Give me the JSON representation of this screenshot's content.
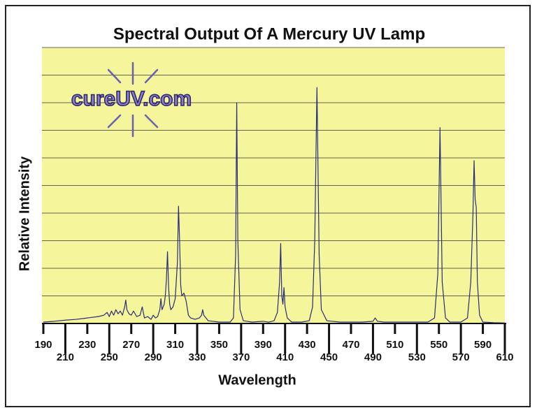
{
  "chart_data": {
    "type": "line",
    "title": "Spectral Output Of A Mercury UV Lamp",
    "x_label": "Wavelength",
    "y_label": "Relative Intensity",
    "logo_text": "cureUV.com",
    "x": [
      190,
      200,
      210,
      220,
      230,
      240,
      245,
      248,
      250,
      252,
      254,
      256,
      258,
      260,
      262,
      264,
      265,
      266,
      268,
      270,
      272,
      275,
      278,
      280,
      282,
      285,
      288,
      290,
      292,
      294,
      296,
      297,
      298,
      300,
      301,
      302,
      303,
      304,
      305,
      306,
      308,
      310,
      312,
      313,
      314,
      315,
      316,
      318,
      320,
      322,
      324,
      328,
      332,
      334,
      335,
      336,
      340,
      350,
      360,
      363,
      365,
      366,
      367,
      369,
      372,
      380,
      390,
      395,
      400,
      403,
      405,
      406,
      407,
      408,
      409,
      410,
      412,
      416,
      425,
      432,
      435,
      437,
      439,
      441,
      443,
      448,
      460,
      480,
      490,
      492,
      494,
      500,
      520,
      540,
      546,
      549,
      551,
      553,
      556,
      560,
      570,
      576,
      579,
      581,
      582,
      583,
      584,
      585,
      587,
      590,
      600,
      610
    ],
    "values": [
      0.05,
      0.08,
      0.12,
      0.15,
      0.2,
      0.25,
      0.3,
      0.4,
      0.25,
      0.45,
      0.3,
      0.5,
      0.35,
      0.45,
      0.3,
      0.6,
      0.85,
      0.5,
      0.35,
      0.3,
      0.45,
      0.25,
      0.3,
      0.6,
      0.2,
      0.25,
      0.15,
      0.3,
      0.2,
      0.25,
      0.5,
      0.9,
      0.5,
      0.7,
      1.0,
      1.6,
      2.6,
      1.3,
      0.7,
      0.5,
      0.6,
      0.9,
      2.2,
      4.25,
      3.0,
      1.4,
      1.0,
      1.1,
      0.8,
      0.3,
      0.2,
      0.15,
      0.2,
      0.3,
      0.5,
      0.3,
      0.1,
      0.05,
      0.05,
      0.2,
      2.5,
      8.0,
      3.0,
      0.5,
      0.1,
      0.05,
      0.08,
      0.05,
      0.1,
      0.4,
      1.5,
      2.9,
      1.0,
      0.7,
      1.3,
      0.6,
      0.2,
      0.05,
      0.05,
      0.1,
      0.6,
      3.0,
      8.55,
      2.5,
      0.5,
      0.1,
      0.05,
      0.05,
      0.08,
      0.2,
      0.08,
      0.05,
      0.05,
      0.05,
      0.2,
      1.8,
      7.1,
      1.5,
      0.2,
      0.05,
      0.05,
      0.2,
      1.5,
      4.0,
      5.9,
      4.5,
      4.2,
      1.5,
      0.3,
      0.05,
      0.03,
      0.02
    ],
    "color": "#2b2b7e",
    "background": "#f5f59c",
    "xlim": [
      190,
      610
    ],
    "xticks": [
      190,
      210,
      230,
      250,
      270,
      290,
      310,
      330,
      350,
      370,
      390,
      410,
      430,
      450,
      470,
      490,
      510,
      530,
      550,
      570,
      590,
      610
    ],
    "ylim": [
      0,
      10
    ],
    "yticks": [
      0,
      1,
      2,
      3,
      4,
      5,
      6,
      7,
      8,
      9,
      10
    ],
    "ytick_labels_shown": false,
    "grid": true
  }
}
